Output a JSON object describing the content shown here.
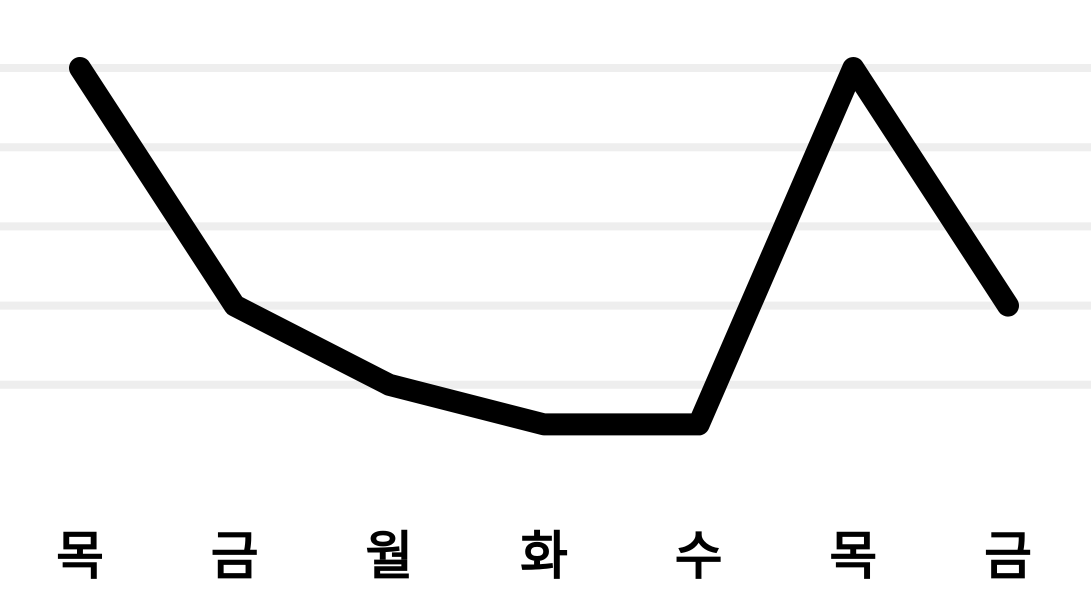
{
  "chart_data": {
    "type": "line",
    "title": "",
    "xlabel": "",
    "ylabel": "",
    "categories": [
      "목",
      "금",
      "월",
      "화",
      "수",
      "목",
      "금"
    ],
    "series": [
      {
        "values": [
          10,
          7,
          6,
          5.5,
          5.5,
          10,
          7
        ]
      }
    ],
    "ylim": [
      5,
      10
    ],
    "grid": true,
    "legend": "none"
  },
  "colors": {
    "line": "#000000",
    "grid": "#eeeeee",
    "background": "#ffffff"
  }
}
